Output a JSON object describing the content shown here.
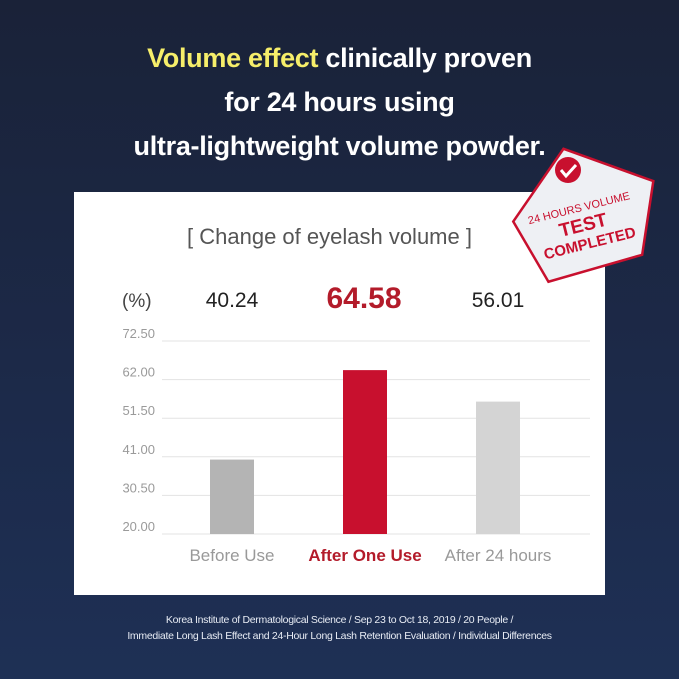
{
  "headline": {
    "highlight": "Volume effect",
    "line1_rest": " clinically proven",
    "line2": "for 24 hours using",
    "line3": "ultra-lightweight volume powder."
  },
  "stamp": {
    "line1": "24 HOURS VOLUME",
    "line2": "TEST",
    "line3": "COMPLETED",
    "icon": "checkmark-seal-icon"
  },
  "colors": {
    "highlight": "#f6ee6a",
    "accent_red": "#c8102e",
    "bar_grey_before": "#b4b4b4",
    "bar_grey_after": "#d4d4d4"
  },
  "chart_data": {
    "type": "bar",
    "title": "[ Change of eyelash volume ]",
    "unit_label": "(%)",
    "categories": [
      "Before Use",
      "After One Use",
      "After 24 hours"
    ],
    "values": [
      40.24,
      64.58,
      56.01
    ],
    "value_labels": [
      "40.24",
      "64.58",
      "56.01"
    ],
    "y_ticks": [
      "72.50",
      "62.00",
      "51.50",
      "41.00",
      "30.50",
      "20.00"
    ],
    "ylim": [
      20,
      72.5
    ],
    "grid": true,
    "highlight_index": 1
  },
  "footer": {
    "line1": "Korea Institute of Dermatological Science / Sep 23 to Oct 18, 2019 / 20 People /",
    "line2": "Immediate Long Lash Effect and 24-Hour Long Lash Retention Evaluation / Individual Differences"
  }
}
